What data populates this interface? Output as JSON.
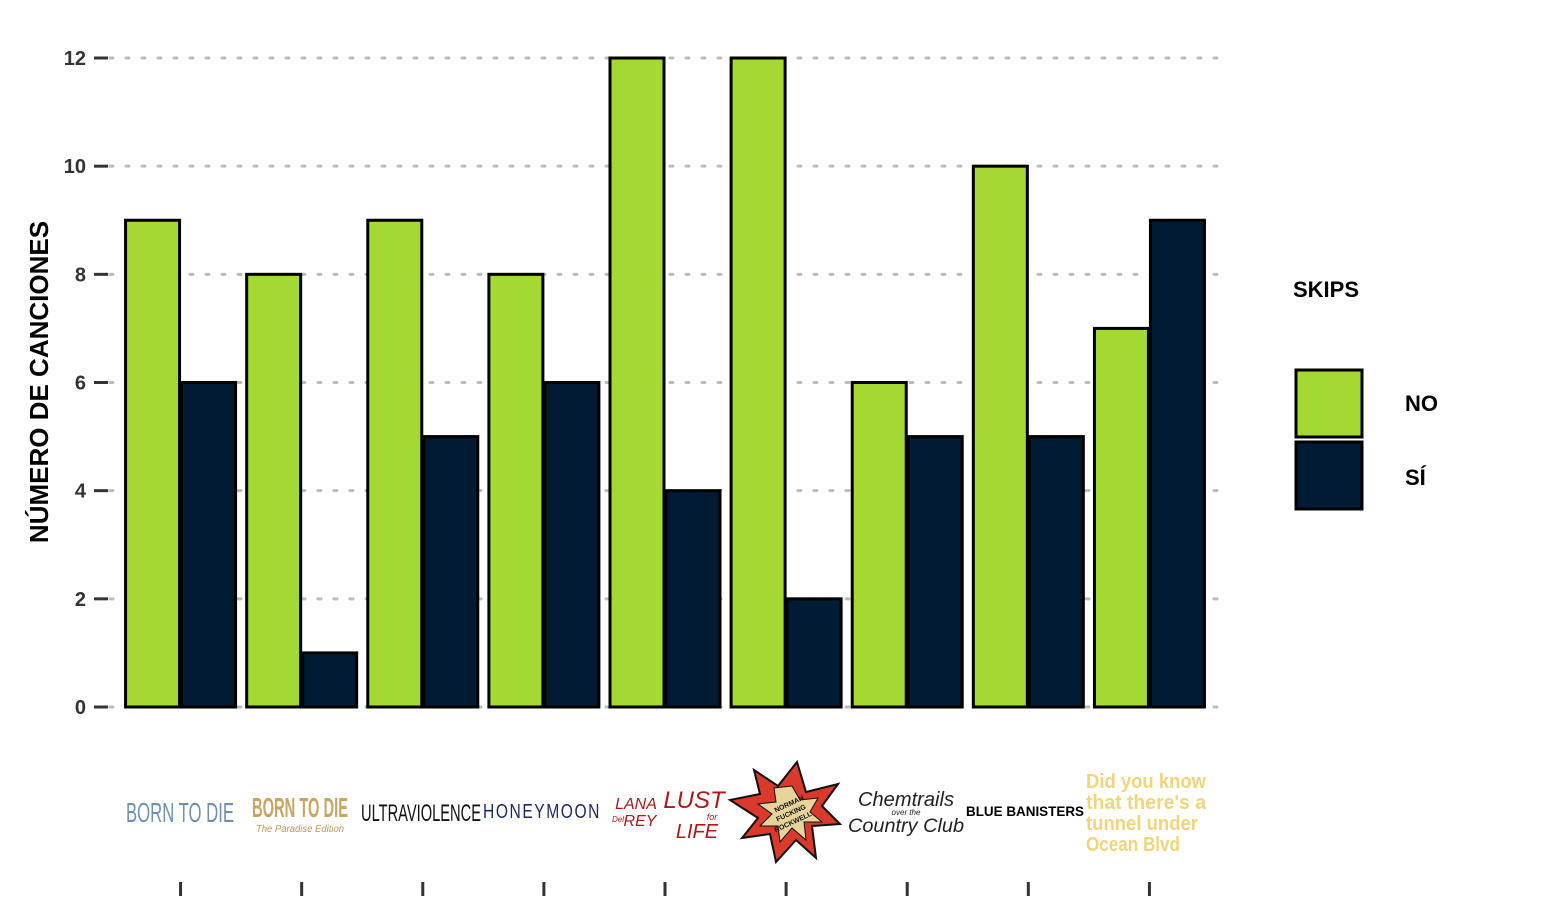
{
  "colors": {
    "no": "#A3D932",
    "si": "#001B33",
    "grid": "#BBBBBB",
    "axis": "#333333"
  },
  "chart_data": {
    "type": "bar",
    "categories": [
      "BORN TO DIE",
      "BORN TO DIE The Paradise Edition",
      "ULTRAVIOLENCE",
      "HONEYMOON",
      "LANA DEL REY LUST FOR LIFE",
      "NORMAN FUCKING ROCKWELL",
      "CHEMTRAILS OVER THE COUNTRY CLUB",
      "BLUE BANISTERS",
      "Did you know that there's a tunnel under Ocean Blvd"
    ],
    "series": [
      {
        "name": "NO",
        "values": [
          9,
          8,
          9,
          8,
          12,
          12,
          6,
          10,
          7
        ]
      },
      {
        "name": "SÍ",
        "values": [
          6,
          1,
          5,
          6,
          4,
          2,
          5,
          5,
          9
        ]
      }
    ],
    "ylabel": "NÚMERO DE CANCIONES",
    "xlabel": "",
    "ylim": [
      0,
      12
    ],
    "yticks": [
      "0",
      "2",
      "4",
      "6",
      "8",
      "10",
      "12"
    ],
    "grid": "horizontal-dotted",
    "legend": {
      "title": "SKIPS",
      "placement": "right",
      "entries": [
        "NO",
        "SÍ"
      ]
    }
  },
  "logos": {
    "btd": "BORN TO DIE",
    "btd_paradise_main": "BORN TO DIE",
    "btd_paradise_sub": "The Paradise Edition",
    "ultraviolence": "ULTRAVIOLENCE",
    "honeymoon": "HONEYMOON",
    "lfl_lana": "LANA",
    "lfl_del": "Del",
    "lfl_rey": "REY",
    "lfl_lust": "LUST",
    "lfl_for": "for",
    "lfl_life": "LIFE",
    "nfr_1": "NORMAN",
    "nfr_2": "FUCKING",
    "nfr_3": "ROCKWELL",
    "ch_1": "Chemtrails",
    "ch_2": "over the",
    "ch_3": "Country Club",
    "blue_banisters": "BLUE BANISTERS",
    "ob_1": "Did you know",
    "ob_2": "that there's a",
    "ob_3": "tunnel under",
    "ob_4": "Ocean Blvd"
  }
}
